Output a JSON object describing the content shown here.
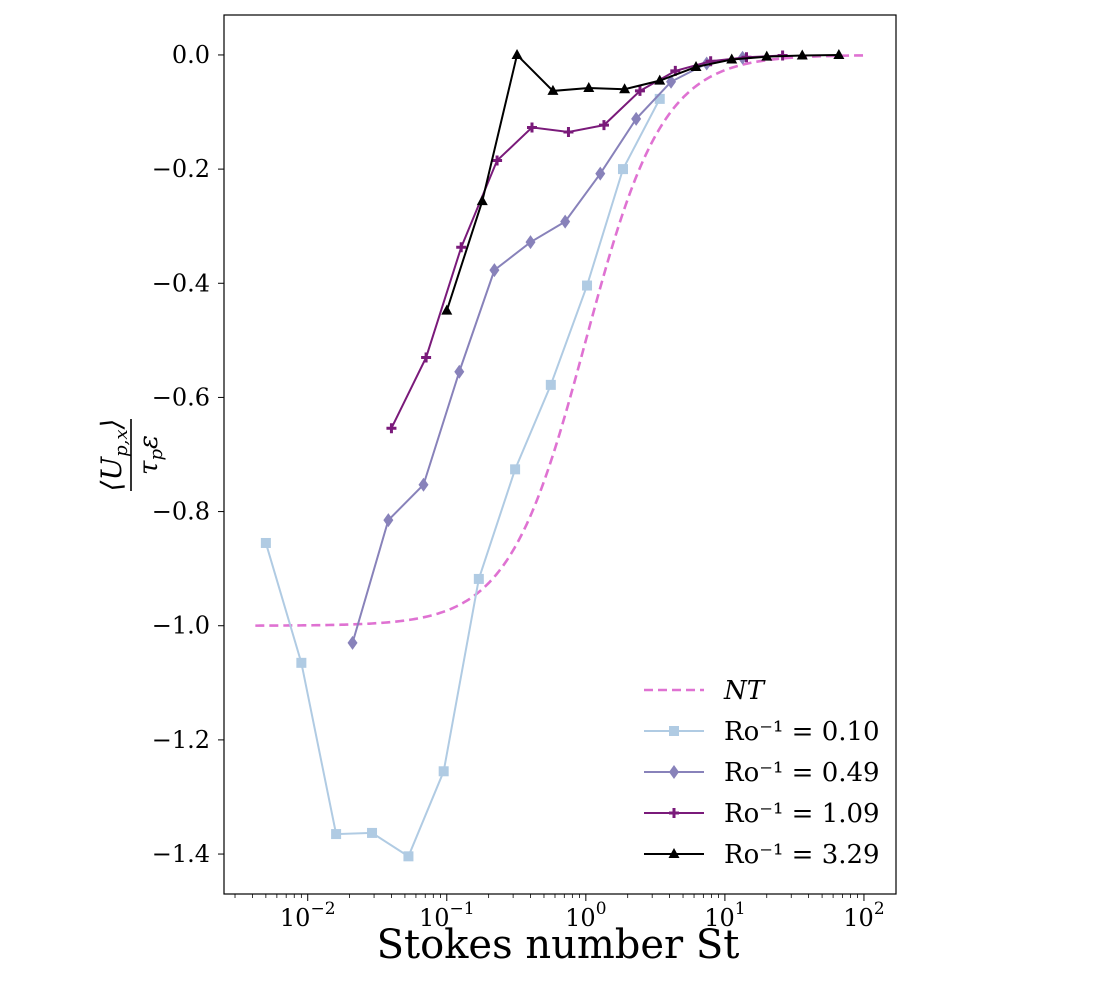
{
  "chart_data": {
    "type": "line",
    "xscale": "log",
    "xlim": [
      0.0025,
      170
    ],
    "ylim": [
      -1.47,
      0.07
    ],
    "xlabel": "Stokes number St",
    "ylabel": "⟨U_p,x⟩ / τ_p ε",
    "ylabel_numerator": "⟨U",
    "ylabel_num_sub": "p,x",
    "ylabel_num_close": "⟩",
    "ylabel_denominator": "τ",
    "ylabel_den_sub": "p",
    "ylabel_den_tail": "ε",
    "yticks": [
      0.0,
      -0.2,
      -0.4,
      -0.6,
      -0.8,
      -1.0,
      -1.2,
      -1.4
    ],
    "ytick_labels": [
      "0.0",
      "−0.2",
      "−0.4",
      "−0.6",
      "−0.8",
      "−1.0",
      "−1.2",
      "−1.4"
    ],
    "xticks": [
      {
        "value": 0.01,
        "base": "10",
        "exp": "−2"
      },
      {
        "value": 0.1,
        "base": "10",
        "exp": "−1"
      },
      {
        "value": 1,
        "base": "10",
        "exp": "0"
      },
      {
        "value": 10,
        "base": "10",
        "exp": "1"
      },
      {
        "value": 100,
        "base": "10",
        "exp": "2"
      }
    ],
    "legend_position": "lower-right",
    "series": [
      {
        "name": "NT",
        "legend": "NT",
        "style": "dashed",
        "marker": "none",
        "color": "#df72d2",
        "curve": "tanh-fit",
        "x_range": [
          0.0042,
          100
        ]
      },
      {
        "name": "Ro^-1 = 0.10",
        "legend": "Ro⁻¹ = 0.10",
        "marker": "square",
        "color": "#b0cbe3",
        "x": [
          0.005,
          0.009,
          0.016,
          0.029,
          0.053,
          0.095,
          0.17,
          0.31,
          0.56,
          1.02,
          1.85,
          3.4
        ],
        "y": [
          -0.855,
          -1.065,
          -1.365,
          -1.363,
          -1.404,
          -1.255,
          -0.918,
          -0.726,
          -0.578,
          -0.404,
          -0.2,
          -0.077
        ]
      },
      {
        "name": "Ro^-1 = 0.49",
        "legend": "Ro⁻¹ = 0.49",
        "marker": "diamond",
        "color": "#8882ba",
        "x": [
          0.021,
          0.038,
          0.068,
          0.123,
          0.22,
          0.4,
          0.71,
          1.27,
          2.3,
          4.1,
          7.4,
          13.4
        ],
        "y": [
          -1.03,
          -0.815,
          -0.753,
          -0.555,
          -0.377,
          -0.328,
          -0.292,
          -0.208,
          -0.112,
          -0.047,
          -0.015,
          -0.005
        ]
      },
      {
        "name": "Ro^-1 = 1.09",
        "legend": "Ro⁻¹ = 1.09",
        "marker": "plus",
        "color": "#7a1a7a",
        "x": [
          0.04,
          0.071,
          0.127,
          0.23,
          0.41,
          0.75,
          1.35,
          2.45,
          4.4,
          7.9,
          14.3,
          26
        ],
        "y": [
          -0.654,
          -0.53,
          -0.337,
          -0.185,
          -0.127,
          -0.135,
          -0.123,
          -0.063,
          -0.028,
          -0.011,
          -0.004,
          -0.001
        ]
      },
      {
        "name": "Ro^-1 = 3.29",
        "legend": "Ro⁻¹ = 3.29",
        "marker": "triangle",
        "color": "#000000",
        "x": [
          0.1,
          0.18,
          0.32,
          0.58,
          1.05,
          1.9,
          3.4,
          6.2,
          11.2,
          20,
          36,
          66
        ],
        "y": [
          -0.448,
          -0.256,
          0.0,
          -0.063,
          -0.058,
          -0.06,
          -0.045,
          -0.021,
          -0.008,
          -0.003,
          -0.001,
          0.0
        ]
      }
    ]
  }
}
